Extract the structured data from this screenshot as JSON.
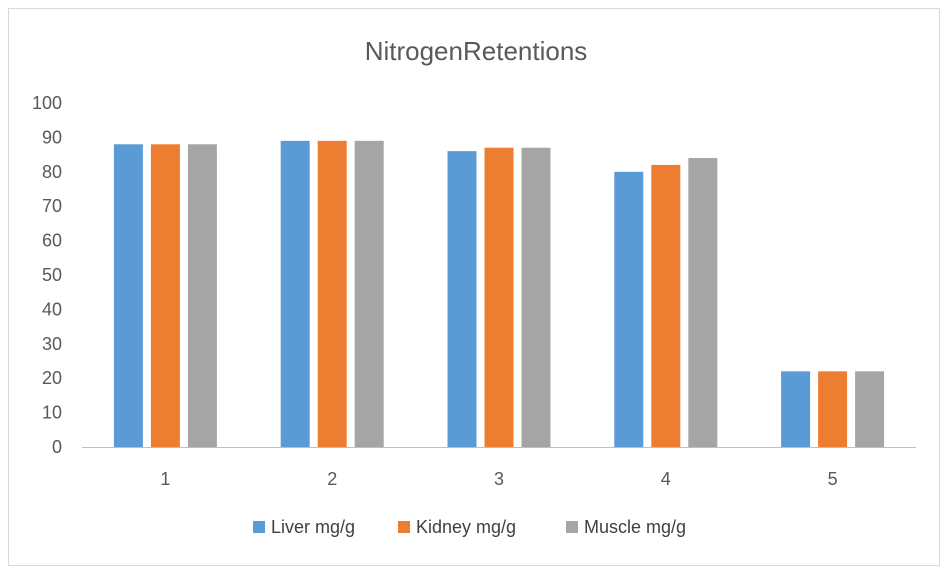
{
  "chart_data": {
    "type": "bar",
    "title": "NitrogenRetentions",
    "xlabel": "",
    "ylabel": "",
    "categories": [
      "1",
      "2",
      "3",
      "4",
      "5"
    ],
    "ylim": [
      0,
      100
    ],
    "yticks": [
      0,
      10,
      20,
      30,
      40,
      50,
      60,
      70,
      80,
      90,
      100
    ],
    "grid": false,
    "legend_position": "bottom",
    "series": [
      {
        "name": "Liver mg/g",
        "color": "#5B9BD5",
        "values": [
          88,
          89,
          86,
          80,
          22
        ]
      },
      {
        "name": "Kidney mg/g",
        "color": "#ED7D31",
        "values": [
          88,
          89,
          87,
          82,
          22
        ]
      },
      {
        "name": "Muscle mg/g",
        "color": "#A5A5A5",
        "values": [
          88,
          89,
          87,
          84,
          22
        ]
      }
    ]
  }
}
